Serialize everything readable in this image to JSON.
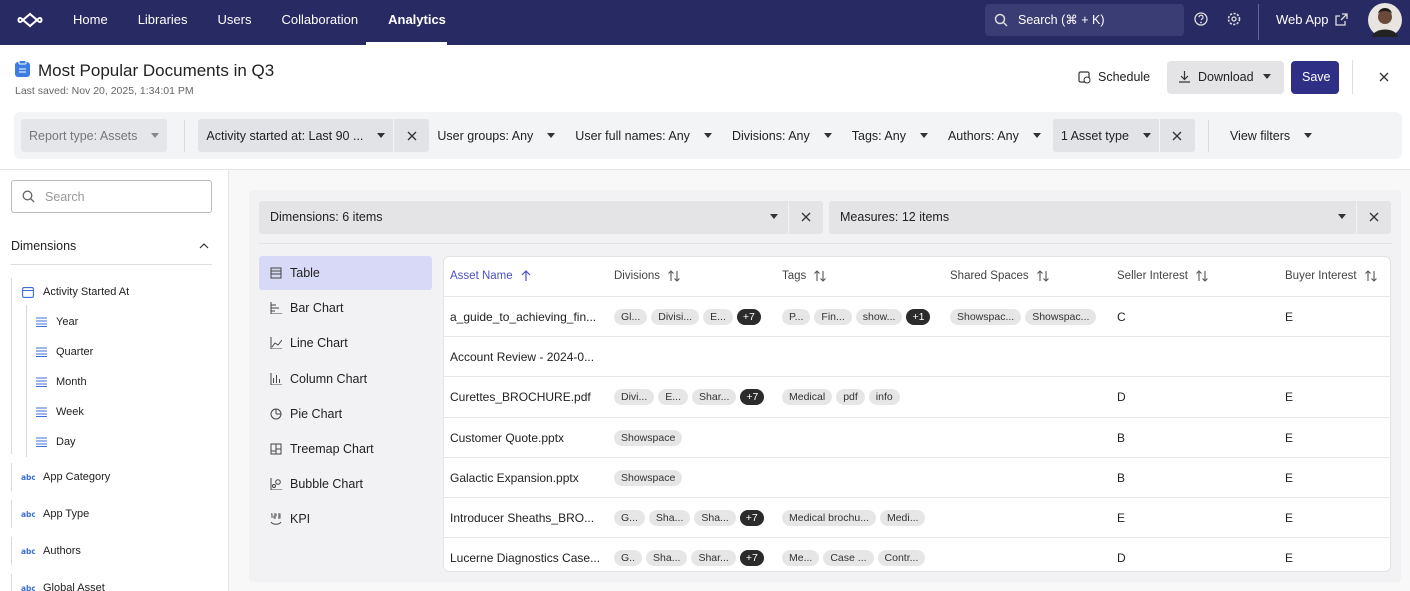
{
  "nav": {
    "items": [
      "Home",
      "Libraries",
      "Users",
      "Collaboration",
      "Analytics"
    ],
    "active": 4,
    "search": "Search (⌘ + K)",
    "web_app": "Web App"
  },
  "header": {
    "title": "Most Popular Documents in Q3",
    "saved": "Last saved: Nov 20, 2025, 1:34:01 PM",
    "schedule": "Schedule",
    "download": "Download",
    "save": "Save"
  },
  "filters": [
    {
      "label": "Report type: Assets",
      "disabled": true
    },
    {
      "label": "Activity started at: Last 90 ...",
      "active": true,
      "removable": true
    },
    {
      "label": "User groups: Any"
    },
    {
      "label": "User full names: Any"
    },
    {
      "label": "Divisions: Any"
    },
    {
      "label": "Tags: Any"
    },
    {
      "label": "Authors: Any"
    },
    {
      "label": "1 Asset type",
      "active": true,
      "removable": true
    },
    {
      "label": "View filters"
    }
  ],
  "sidebar": {
    "search": "Search",
    "section": "Dimensions",
    "tree": [
      {
        "label": "Activity Started At",
        "children": [
          "Year",
          "Quarter",
          "Month",
          "Week",
          "Day"
        ]
      },
      {
        "label": "App Category"
      },
      {
        "label": "App Type"
      },
      {
        "label": "Authors"
      },
      {
        "label": "Global Asset"
      }
    ]
  },
  "main": {
    "dimensions": "Dimensions: 6 items",
    "measures": "Measures: 12 items",
    "chart_types": [
      "Table",
      "Bar Chart",
      "Line Chart",
      "Column Chart",
      "Pie Chart",
      "Treemap Chart",
      "Bubble Chart",
      "KPI"
    ],
    "selected_chart": 0,
    "table": {
      "columns": [
        "Asset Name",
        "Divisions",
        "Tags",
        "Shared Spaces",
        "Seller Interest",
        "Buyer Interest"
      ],
      "sorted_column": 0,
      "rows": [
        {
          "name": "a_guide_to_achieving_fin...",
          "divisions": {
            "chips": [
              "Gl...",
              "Divisi...",
              "E..."
            ],
            "more": "+7"
          },
          "tags": {
            "chips": [
              "P...",
              "Fin...",
              "show..."
            ],
            "more": "+1"
          },
          "shared": {
            "chips": [
              "Showspac...",
              "Showspac..."
            ]
          },
          "seller": "C",
          "buyer": "E"
        },
        {
          "name": "Account Review - 2024-0..."
        },
        {
          "name": "Curettes_BROCHURE.pdf",
          "divisions": {
            "chips": [
              "Divi...",
              "E...",
              "Shar..."
            ],
            "more": "+7"
          },
          "tags": {
            "chips": [
              "Medical",
              "pdf",
              "info"
            ]
          },
          "seller": "D",
          "buyer": "E"
        },
        {
          "name": "Customer Quote.pptx",
          "divisions": {
            "chips": [
              "Showspace"
            ]
          },
          "seller": "B",
          "buyer": "E"
        },
        {
          "name": "Galactic Expansion.pptx",
          "divisions": {
            "chips": [
              "Showspace"
            ]
          },
          "seller": "B",
          "buyer": "E"
        },
        {
          "name": "Introducer Sheaths_BRO...",
          "divisions": {
            "chips": [
              "G...",
              "Sha...",
              "Sha..."
            ],
            "more": "+7"
          },
          "tags": {
            "chips": [
              "Medical brochu...",
              "Medi..."
            ]
          },
          "seller": "E",
          "buyer": "E"
        },
        {
          "name": "Lucerne Diagnostics Case...",
          "divisions": {
            "chips": [
              "G..",
              "Sha...",
              "Shar..."
            ],
            "more": "+7"
          },
          "tags": {
            "chips": [
              "Me...",
              "Case ...",
              "Contr..."
            ]
          },
          "seller": "D",
          "buyer": "E"
        }
      ]
    }
  }
}
